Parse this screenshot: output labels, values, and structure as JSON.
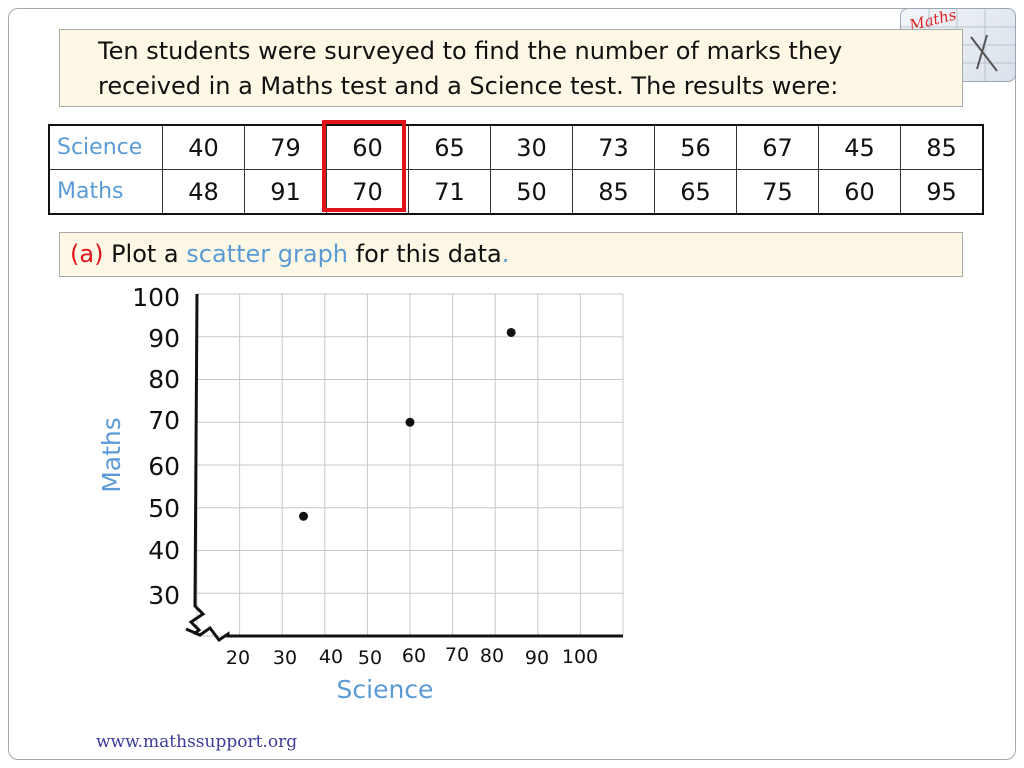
{
  "intro": {
    "line1": "Ten students were surveyed to find the number of marks they",
    "line2": "received in a Maths test and a Science test. The results were:"
  },
  "table": {
    "rows": [
      {
        "label": "Science",
        "values": [
          "40",
          "79",
          "60",
          "65",
          "30",
          "73",
          "56",
          "67",
          "45",
          "85"
        ]
      },
      {
        "label": "Maths",
        "values": [
          "48",
          "91",
          "70",
          "71",
          "50",
          "85",
          "65",
          "75",
          "60",
          "95"
        ]
      }
    ],
    "highlight_color": "#e0141a"
  },
  "question": {
    "part": "(a)",
    "text_before": " Plot a ",
    "keyword": "scatter graph",
    "text_after": " for this data",
    "period": "."
  },
  "chart_data": {
    "type": "scatter",
    "xlabel": "Science",
    "ylabel": "Maths",
    "x_ticks": [
      "20",
      "30",
      "40",
      "50",
      "60",
      "70",
      "80",
      "90",
      "100"
    ],
    "y_ticks": [
      "100",
      "90",
      "80",
      "70",
      "60",
      "50",
      "40",
      "30"
    ],
    "xlim": [
      20,
      100
    ],
    "ylim": [
      20,
      100
    ],
    "axis_break": true,
    "grid": true,
    "points": [
      {
        "x": 40,
        "y": 48
      },
      {
        "x": 60,
        "y": 70
      },
      {
        "x": 79,
        "y": 91
      }
    ],
    "label_color": "#5b9bd5"
  },
  "footer": "www.mathssupport.org",
  "logo_text": "Maths"
}
